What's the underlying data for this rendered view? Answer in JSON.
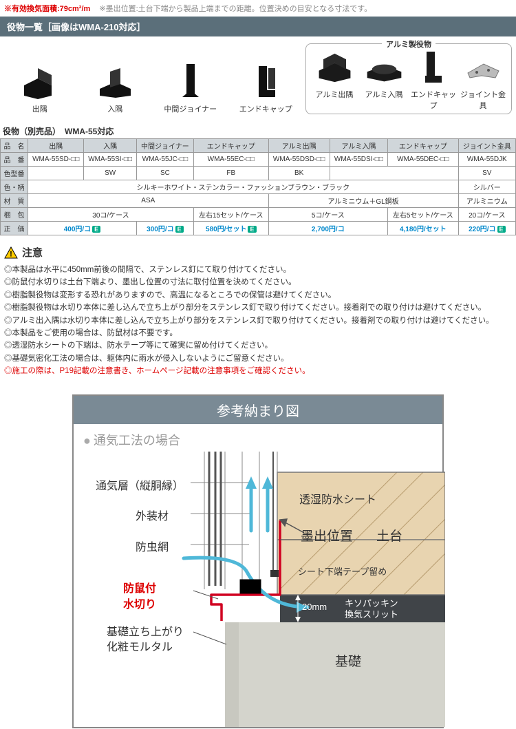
{
  "header": {
    "emph": "※有効換気面積:79cm²/m",
    "note": "※墨出位置:土台下端から製品上端までの距離。位置決めの目安となる寸法です。"
  },
  "section_title": "役物一覧［画像はWMA-210対応］",
  "alum_title": "アルミ製役物",
  "products_left": [
    {
      "label": "出隅"
    },
    {
      "label": "入隅"
    },
    {
      "label": "中間ジョイナー"
    },
    {
      "label": "エンドキャップ"
    }
  ],
  "products_right": [
    {
      "label": "アルミ出隅"
    },
    {
      "label": "アルミ入隅"
    },
    {
      "label": "エンドキャップ"
    },
    {
      "label": "ジョイント金具"
    }
  ],
  "table_title": "役物（別売品）　WMA-55対応",
  "table": {
    "header_row": [
      "品　名",
      "出隅",
      "入隅",
      "中間ジョイナー",
      "エンドキャップ",
      "アルミ出隅",
      "アルミ入隅",
      "エンドキャップ",
      "ジョイント金具"
    ],
    "rows": [
      {
        "head": "品　番",
        "cells": [
          "WMA-55SD-□□",
          "WMA-55SI-□□",
          "WMA-55JC-□□",
          "WMA-55EC-□□",
          "WMA-55DSD-□□",
          "WMA-55DSI-□□",
          "WMA-55DEC-□□",
          "WMA-55DJK"
        ]
      },
      {
        "head": "色型番",
        "groups": [
          {
            "span": 1,
            "text": ""
          },
          {
            "span": 1,
            "text": "SW"
          },
          {
            "span": 1,
            "text": "SC"
          },
          {
            "span": 1,
            "text": "FB"
          },
          {
            "span": 1,
            "text": "BK"
          },
          {
            "span": 2,
            "text": ""
          },
          {
            "span": 1,
            "text": "SV"
          }
        ]
      },
      {
        "head": "色・柄",
        "groups": [
          {
            "span": 7,
            "text": "シルキーホワイト・ステンカラー・ファッションブラウン・ブラック"
          },
          {
            "span": 1,
            "text": "シルバー"
          }
        ]
      },
      {
        "head": "材　質",
        "groups": [
          {
            "span": 4,
            "text": "ASA"
          },
          {
            "span": 3,
            "text": "アルミニウム＋GL鋼板"
          },
          {
            "span": 1,
            "text": "アルミニウム"
          }
        ]
      },
      {
        "head": "梱　包",
        "groups": [
          {
            "span": 3,
            "text": "30コ/ケース"
          },
          {
            "span": 1,
            "text": "左右15セット/ケース"
          },
          {
            "span": 2,
            "text": "5コ/ケース"
          },
          {
            "span": 1,
            "text": "左右5セット/ケース"
          },
          {
            "span": 1,
            "text": "20コ/ケース"
          }
        ]
      },
      {
        "head": "正　価",
        "prices": [
          {
            "span": 2,
            "text": "400円/コ",
            "badge": "E"
          },
          {
            "span": 1,
            "text": "300円/コ",
            "badge": "E"
          },
          {
            "span": 1,
            "text": "580円/セット",
            "badge": "E"
          },
          {
            "span": 2,
            "text": "2,700円/コ",
            "badge": ""
          },
          {
            "span": 1,
            "text": "4,180円/セット",
            "badge": ""
          },
          {
            "span": 1,
            "text": "220円/コ",
            "badge": "E"
          }
        ]
      }
    ]
  },
  "warning": {
    "title": "注意",
    "items": [
      "◎本製品は水平に450mm前後の間隔で、ステンレス釘にて取り付けてください。",
      "◎防鼠付水切りは土台下端より、墨出し位置の寸法に取付位置を決めてください。",
      "◎樹脂製役物は変形する恐れがありますので、高温になるところでの保管は避けてください。",
      "◎樹脂製役物は水切り本体に差し込んで立ち上がり部分をステンレス釘で取り付けてください。接着剤での取り付けは避けてください。",
      "◎アルミ出入隅は水切り本体に差し込んで立ち上がり部分をステンレス釘で取り付けてください。接着剤での取り付けは避けてください。",
      "◎本製品をご使用の場合は、防鼠材は不要です。",
      "◎透湿防水シートの下端は、防水テープ等にて確実に留め付けてください。",
      "◎基礎気密化工法の場合は、躯体内に雨水が侵入しないようにご留意ください。"
    ],
    "red_item": "◎施工の際は、P19記載の注意書き、ホームページ記載の注意事項をご確認ください。"
  },
  "diagram": {
    "title": "参考納まり図",
    "subtitle": "通気工法の場合",
    "labels": {
      "tsuuki": "通気層（縦胴縁）",
      "gaiso": "外装材",
      "bochu": "防虫網",
      "boso": "防鼠付",
      "mizukiri": "水切り",
      "kiso_tachi": "基礎立ち上がり",
      "keshou": "化粧モルタル",
      "toshitsu": "透湿防水シート",
      "sumidashi": "墨出位置",
      "dodai": "土台",
      "sheet": "シート下端テープ留め",
      "mm20": "20mm",
      "kisopac": "キソパッキン",
      "kanki": "換気スリット",
      "kiso": "基礎"
    },
    "colors": {
      "red": "#d00020",
      "blue": "#4fb8d8",
      "grey": "#888888",
      "beige": "#e8d4b0",
      "dark": "#404448",
      "lightgrey": "#d4d4cc"
    }
  }
}
